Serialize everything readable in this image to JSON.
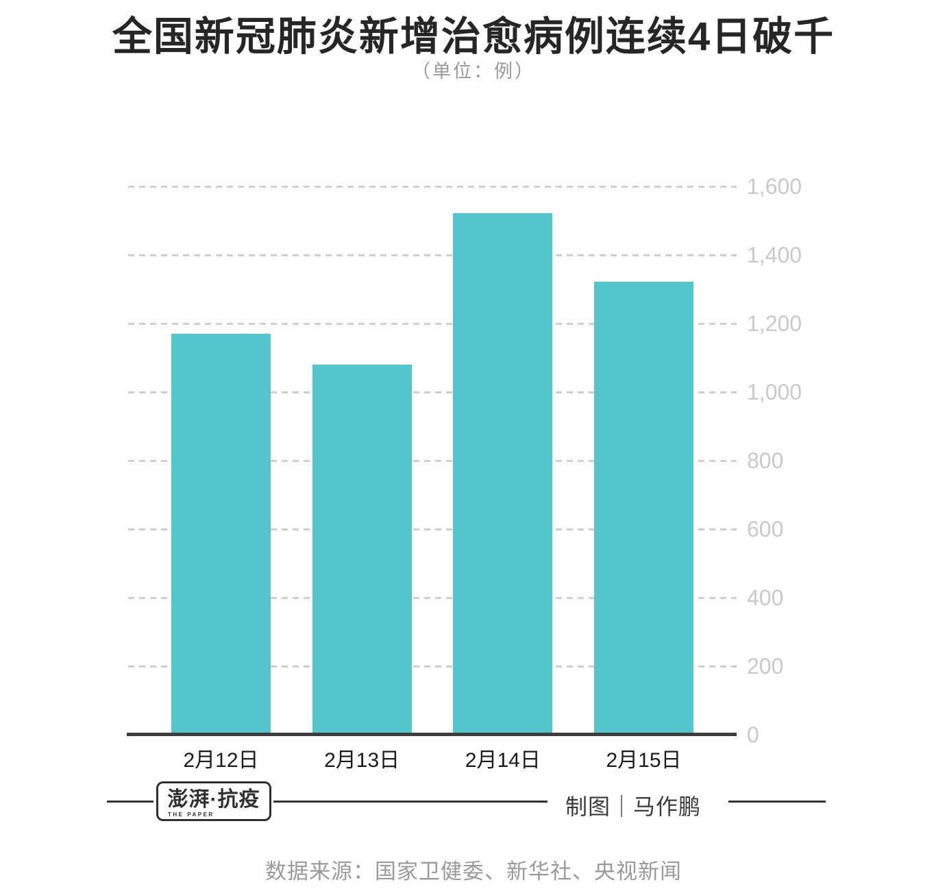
{
  "title": "全国新冠肺炎新增治愈病例连续4日破千",
  "subtitle": "（单位：例）",
  "chart_data": {
    "type": "bar",
    "title": "全国新冠肺炎新增治愈病例连续4日破千",
    "unit_note": "（单位：例）",
    "categories": [
      "2月12日",
      "2月13日",
      "2月14日",
      "2月15日"
    ],
    "values": [
      1171,
      1081,
      1523,
      1323
    ],
    "xlabel": "",
    "ylabel": "",
    "ylim": [
      0,
      1600
    ],
    "ytick_interval": 200,
    "yticks": [
      "0",
      "200",
      "400",
      "600",
      "800",
      "1,000",
      "1,200",
      "1,400",
      "1,600"
    ],
    "grid": "horizontal dashed",
    "legend": "none"
  },
  "colors": {
    "bar": "#54C5CB",
    "grid": "#cfcfcf",
    "ytick_text": "#c9c9c9",
    "xtick_text": "#1a1a1a",
    "axis": "#3d3d3d",
    "title_text": "#262626",
    "subtitle_text": "#999999",
    "source_text": "#9a9a9a"
  },
  "footer": {
    "logo_main": "澎湃·抗疫",
    "logo_sub": "THE PAPER",
    "credit": "制图｜马作鹏",
    "source": "数据来源：国家卫健委、新华社、央视新闻"
  }
}
